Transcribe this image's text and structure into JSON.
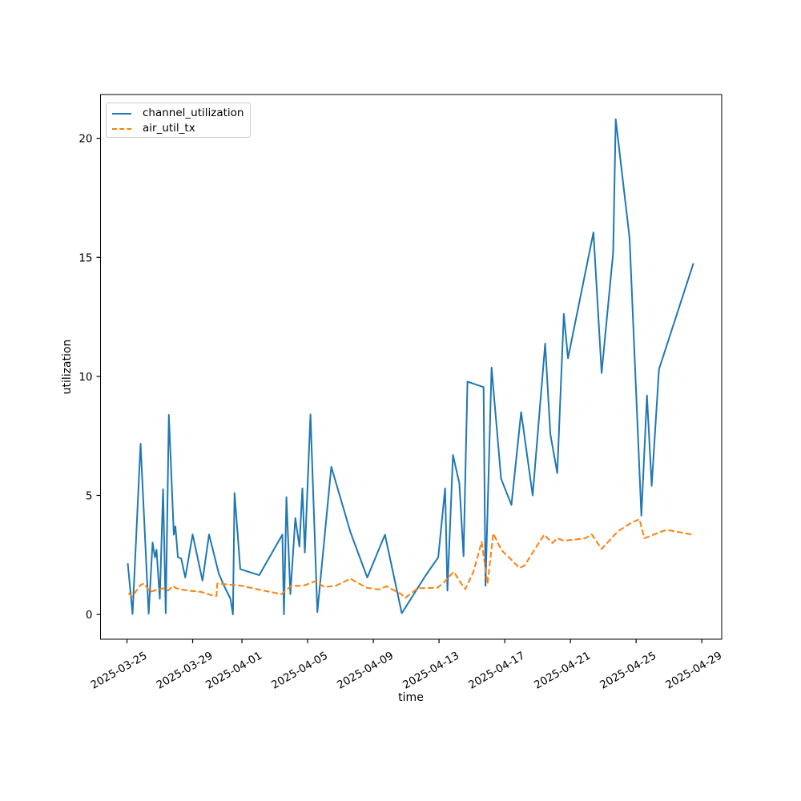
{
  "figure": {
    "background": "#ffffff",
    "spine_color": "#000000",
    "legend_border_color": "#cccccc"
  },
  "chart_data": {
    "type": "line",
    "title": "",
    "xlabel": "time",
    "ylabel": "utilization",
    "grid": false,
    "x_axis": {
      "unit": "days since 2025-03-25",
      "lim": [
        -1.61,
        36.21
      ],
      "tick_days": [
        0,
        4,
        7,
        11,
        15,
        19,
        23,
        27,
        31,
        35
      ],
      "tick_labels": [
        "2025-03-25",
        "2025-03-29",
        "2025-04-01",
        "2025-04-05",
        "2025-04-09",
        "2025-04-13",
        "2025-04-17",
        "2025-04-21",
        "2025-04-25",
        "2025-04-29"
      ],
      "tick_rotation_deg": 30
    },
    "y_axis": {
      "lim": [
        -1.04,
        21.84
      ],
      "ticks": [
        0,
        5,
        10,
        15,
        20
      ]
    },
    "legend": {
      "position": "upper-left",
      "entries": [
        "channel_utilization",
        "air_util_tx"
      ]
    },
    "series": [
      {
        "name": "channel_utilization",
        "color": "#1f77b4",
        "line_style": "solid",
        "points": [
          [
            0.05,
            2.15
          ],
          [
            0.34,
            0.02
          ],
          [
            0.83,
            7.17
          ],
          [
            1.32,
            0.03
          ],
          [
            1.56,
            3.02
          ],
          [
            1.7,
            2.4
          ],
          [
            1.8,
            2.72
          ],
          [
            2.0,
            0.66
          ],
          [
            2.2,
            5.26
          ],
          [
            2.36,
            0.05
          ],
          [
            2.55,
            8.38
          ],
          [
            2.85,
            3.35
          ],
          [
            2.95,
            3.7
          ],
          [
            3.1,
            2.4
          ],
          [
            3.3,
            2.35
          ],
          [
            3.55,
            1.55
          ],
          [
            4.0,
            3.36
          ],
          [
            4.6,
            1.42
          ],
          [
            5.0,
            3.36
          ],
          [
            5.6,
            1.7
          ],
          [
            5.95,
            1.15
          ],
          [
            6.3,
            0.66
          ],
          [
            6.45,
            0.0
          ],
          [
            6.55,
            5.1
          ],
          [
            6.9,
            1.9
          ],
          [
            8.05,
            1.65
          ],
          [
            9.46,
            3.35
          ],
          [
            9.56,
            0.0
          ],
          [
            9.71,
            4.93
          ],
          [
            9.95,
            0.85
          ],
          [
            10.25,
            4.05
          ],
          [
            10.5,
            2.85
          ],
          [
            10.68,
            5.3
          ],
          [
            10.83,
            2.6
          ],
          [
            11.17,
            8.4
          ],
          [
            11.59,
            0.1
          ],
          [
            12.44,
            6.2
          ],
          [
            13.61,
            3.45
          ],
          [
            14.63,
            1.55
          ],
          [
            15.71,
            3.35
          ],
          [
            16.73,
            0.05
          ],
          [
            18.15,
            1.6
          ],
          [
            18.95,
            2.4
          ],
          [
            19.37,
            5.3
          ],
          [
            19.51,
            1.0
          ],
          [
            19.85,
            6.7
          ],
          [
            20.24,
            5.5
          ],
          [
            20.49,
            2.45
          ],
          [
            20.73,
            9.78
          ],
          [
            21.71,
            9.55
          ],
          [
            21.83,
            1.2
          ],
          [
            22.2,
            10.37
          ],
          [
            22.78,
            5.7
          ],
          [
            23.41,
            4.6
          ],
          [
            24.0,
            8.5
          ],
          [
            24.7,
            5.0
          ],
          [
            25.46,
            11.38
          ],
          [
            25.78,
            7.57
          ],
          [
            26.2,
            5.94
          ],
          [
            26.6,
            12.62
          ],
          [
            26.85,
            10.76
          ],
          [
            28.4,
            16.05
          ],
          [
            28.9,
            10.14
          ],
          [
            29.6,
            15.2
          ],
          [
            29.76,
            20.8
          ],
          [
            30.6,
            15.8
          ],
          [
            31.32,
            4.15
          ],
          [
            31.66,
            9.2
          ],
          [
            31.95,
            5.4
          ],
          [
            32.39,
            10.3
          ],
          [
            34.49,
            14.75
          ]
        ]
      },
      {
        "name": "air_util_tx",
        "color": "#ff7f0e",
        "line_style": "dashed",
        "points": [
          [
            0.1,
            0.9
          ],
          [
            0.3,
            0.74
          ],
          [
            0.85,
            1.25
          ],
          [
            1.05,
            1.3
          ],
          [
            1.4,
            0.95
          ],
          [
            1.9,
            1.05
          ],
          [
            2.25,
            1.1
          ],
          [
            2.5,
            1.0
          ],
          [
            2.8,
            1.2
          ],
          [
            3.0,
            1.1
          ],
          [
            3.5,
            1.02
          ],
          [
            4.5,
            0.95
          ],
          [
            5.2,
            0.8
          ],
          [
            5.45,
            0.78
          ],
          [
            5.5,
            1.3
          ],
          [
            6.3,
            1.25
          ],
          [
            7.0,
            1.2
          ],
          [
            8.0,
            1.05
          ],
          [
            9.4,
            0.85
          ],
          [
            10.0,
            1.2
          ],
          [
            10.7,
            1.2
          ],
          [
            11.5,
            1.4
          ],
          [
            12.0,
            1.15
          ],
          [
            12.7,
            1.2
          ],
          [
            13.6,
            1.5
          ],
          [
            14.6,
            1.12
          ],
          [
            15.3,
            1.05
          ],
          [
            15.8,
            1.18
          ],
          [
            16.7,
            0.85
          ],
          [
            16.95,
            0.7
          ],
          [
            17.7,
            1.1
          ],
          [
            18.9,
            1.12
          ],
          [
            19.3,
            1.35
          ],
          [
            19.9,
            1.8
          ],
          [
            20.3,
            1.35
          ],
          [
            20.6,
            1.06
          ],
          [
            21.1,
            1.8
          ],
          [
            21.6,
            3.05
          ],
          [
            21.95,
            1.28
          ],
          [
            22.3,
            3.4
          ],
          [
            22.8,
            2.7
          ],
          [
            23.4,
            2.3
          ],
          [
            23.9,
            1.95
          ],
          [
            24.2,
            2.05
          ],
          [
            25.4,
            3.35
          ],
          [
            25.9,
            3.0
          ],
          [
            26.2,
            3.2
          ],
          [
            26.6,
            3.1
          ],
          [
            27.3,
            3.15
          ],
          [
            27.9,
            3.2
          ],
          [
            28.3,
            3.36
          ],
          [
            28.9,
            2.75
          ],
          [
            29.9,
            3.5
          ],
          [
            30.7,
            3.85
          ],
          [
            31.2,
            4.0
          ],
          [
            31.5,
            3.2
          ],
          [
            32.6,
            3.5
          ],
          [
            32.9,
            3.55
          ],
          [
            34.2,
            3.38
          ],
          [
            34.5,
            3.35
          ]
        ]
      }
    ]
  }
}
